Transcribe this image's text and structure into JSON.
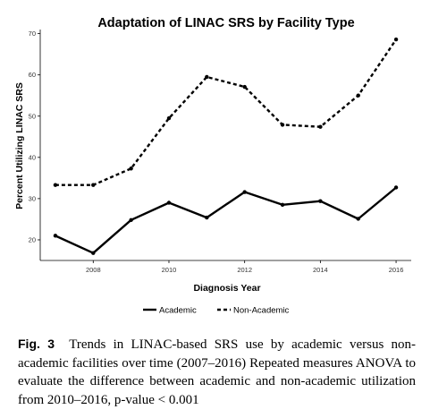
{
  "chart_data": {
    "type": "line",
    "title": "Adaptation of LINAC SRS by Facility Type",
    "xlabel": "Diagnosis Year",
    "ylabel": "Percent Utilizing LINAC SRS",
    "x": [
      2007,
      2008,
      2009,
      2010,
      2011,
      2012,
      2013,
      2014,
      2015,
      2016
    ],
    "xlim": [
      2006.6,
      2016.4
    ],
    "ylim": [
      15,
      71
    ],
    "x_ticks": [
      2008,
      2010,
      2012,
      2014,
      2016
    ],
    "y_ticks": [
      20,
      30,
      40,
      50,
      60,
      70
    ],
    "grid": false,
    "legend_position": "bottom",
    "series": [
      {
        "name": "Academic",
        "style": "solid",
        "values": [
          21.0,
          16.8,
          24.8,
          29.0,
          25.4,
          31.6,
          28.5,
          29.4,
          25.1,
          32.7
        ]
      },
      {
        "name": "Non-Academic",
        "style": "dashed",
        "values": [
          33.3,
          33.3,
          37.3,
          49.5,
          59.5,
          57.1,
          47.9,
          47.4,
          55.0,
          68.6
        ]
      }
    ]
  },
  "caption": {
    "label": "Fig. 3",
    "text": "Trends in LINAC-based SRS use by academic versus non-academic facilities over time (2007–2016) Repeated measures ANOVA to evaluate the difference between academic and non-academic utilization from 2010–2016, p-value < 0.001"
  }
}
